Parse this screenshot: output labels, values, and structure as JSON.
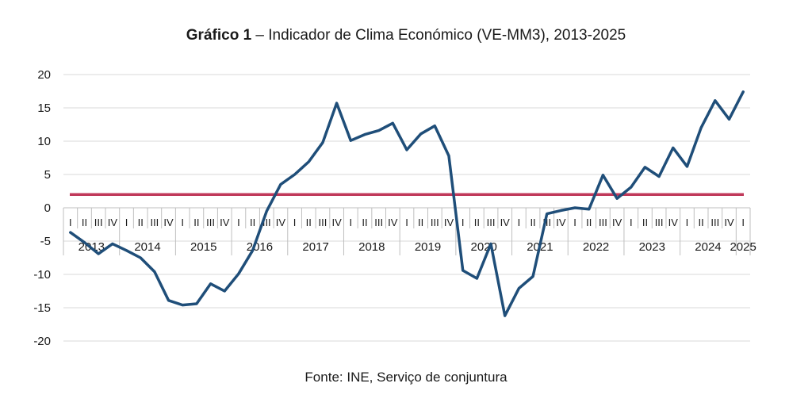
{
  "title": {
    "bold_part": "Gráfico 1",
    "rest_part": " – Indicador de Clima Económico (VE-MM3), 2013-2025"
  },
  "source": "Fonte: INE, Serviço de conjuntura",
  "colors": {
    "series": "#1f4e79",
    "reference": "#c0395a",
    "grid": "#d9d9d9",
    "axis": "#bfbfbf",
    "text": "#1a1a1a"
  },
  "chart_data": {
    "type": "line",
    "title": "Gráfico 1 – Indicador de Clima Económico (VE-MM3), 2013-2025",
    "xlabel": "",
    "ylabel": "",
    "ylim": [
      -20,
      20
    ],
    "yticks": [
      -20,
      -15,
      -10,
      -5,
      0,
      5,
      10,
      15,
      20
    ],
    "grid": true,
    "legend": "none",
    "quarters": [
      "I",
      "II",
      "III",
      "IV"
    ],
    "years": [
      "2013",
      "2014",
      "2015",
      "2016",
      "2017",
      "2018",
      "2019",
      "2020",
      "2021",
      "2022",
      "2023",
      "2024",
      "2025"
    ],
    "series": [
      {
        "values": [
          -3.7,
          -5.2,
          -6.9,
          -5.4,
          -6.4,
          -7.5,
          -9.6,
          -13.9,
          -14.6,
          -14.4,
          -11.4,
          -12.5,
          -9.9,
          -6.4,
          -0.5,
          3.5,
          5.0,
          6.9,
          9.8,
          15.7,
          10.1,
          11.0,
          11.6,
          12.7,
          8.7,
          11.1,
          12.3,
          7.8,
          -9.4,
          -10.6,
          -5.4,
          -16.2,
          -12.1,
          -10.3,
          -0.9,
          -0.4,
          0.0,
          -0.2,
          4.9,
          1.4,
          3.1,
          6.1,
          4.7,
          9.0,
          6.2,
          12.0,
          16.1,
          13.3,
          17.4
        ]
      },
      {
        "values": [
          2.0
        ]
      }
    ]
  }
}
